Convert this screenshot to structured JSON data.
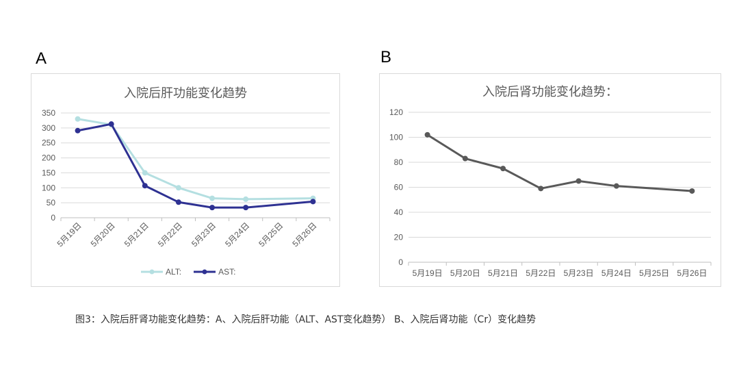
{
  "panel_a_label": "A",
  "panel_b_label": "B",
  "caption": "图3：入院后肝肾功能变化趋势：A、入院后肝功能（ALT、AST变化趋势）  B、入院后肾功能（Cr）变化趋势",
  "chart_data": [
    {
      "type": "line",
      "title": "入院后肝功能变化趋势",
      "categories": [
        "5月19日",
        "5月20日",
        "5月21日",
        "5月22日",
        "5月23日",
        "5月24日",
        "5月25日",
        "5月26日"
      ],
      "ylim": [
        0,
        350
      ],
      "yticks": [
        0,
        50,
        100,
        150,
        200,
        250,
        300,
        350
      ],
      "grid": true,
      "legend": "bottom",
      "series": [
        {
          "name": "ALT:",
          "color": "#b4dfe1",
          "values": [
            330,
            311,
            150,
            100,
            65,
            62,
            null,
            65
          ]
        },
        {
          "name": "AST:",
          "color": "#2e3192",
          "values": [
            291,
            313,
            107,
            52,
            34,
            34,
            null,
            54
          ]
        }
      ]
    },
    {
      "type": "line",
      "title": "入院后肾功能变化趋势：",
      "categories": [
        "5月19日",
        "5月20日",
        "5月21日",
        "5月22日",
        "5月23日",
        "5月24日",
        "5月25日",
        "5月26日"
      ],
      "ylim": [
        0,
        120
      ],
      "yticks": [
        0,
        20,
        40,
        60,
        80,
        100,
        120
      ],
      "grid": true,
      "legend": "none",
      "series": [
        {
          "color": "#595959",
          "values": [
            102,
            83,
            75,
            59,
            65,
            61,
            null,
            57
          ]
        }
      ]
    }
  ]
}
